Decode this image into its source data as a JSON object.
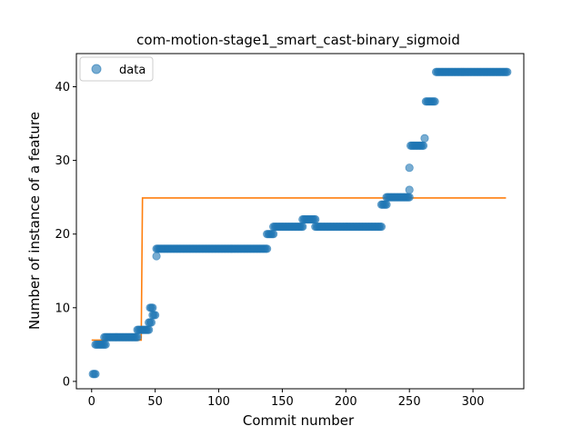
{
  "chart_data": {
    "type": "scatter",
    "title": "com-motion-stage1_smart_cast-binary_sigmoid",
    "xlabel": "Commit number",
    "ylabel": "Number of instance of a feature",
    "xlim": [
      -12,
      340
    ],
    "ylim": [
      -1,
      44.5
    ],
    "xticks": [
      0,
      50,
      100,
      150,
      200,
      250,
      300
    ],
    "yticks": [
      0,
      10,
      20,
      30,
      40
    ],
    "xtick_labels": [
      "0",
      "50",
      "100",
      "150",
      "200",
      "250",
      "300"
    ],
    "ytick_labels": [
      "0",
      "10",
      "20",
      "30",
      "40"
    ],
    "grid": false,
    "legend": {
      "position": "top-left",
      "entries": [
        "data"
      ]
    },
    "colors": {
      "points": "#1f77b4",
      "fit": "#ff7f0e"
    },
    "series": [
      {
        "name": "data",
        "kind": "scatter",
        "runs": [
          {
            "x0": 1,
            "x1": 3,
            "y": 1
          },
          {
            "x0": 3,
            "x1": 11,
            "y": 5
          },
          {
            "x0": 10,
            "x1": 36,
            "y": 6
          },
          {
            "x0": 36,
            "x1": 45,
            "y": 7
          },
          {
            "x0": 45,
            "x1": 47,
            "y": 8
          },
          {
            "x0": 46,
            "x1": 48,
            "y": 10
          },
          {
            "x0": 48,
            "x1": 50,
            "y": 9
          },
          {
            "x0": 51,
            "x1": 51,
            "y": 17
          },
          {
            "x0": 51,
            "x1": 138,
            "y": 18
          },
          {
            "x0": 138,
            "x1": 143,
            "y": 20
          },
          {
            "x0": 143,
            "x1": 166,
            "y": 21
          },
          {
            "x0": 166,
            "x1": 176,
            "y": 22
          },
          {
            "x0": 176,
            "x1": 228,
            "y": 21
          },
          {
            "x0": 228,
            "x1": 232,
            "y": 24
          },
          {
            "x0": 232,
            "x1": 250,
            "y": 25
          },
          {
            "x0": 250,
            "x1": 250,
            "y": 26
          },
          {
            "x0": 250,
            "x1": 250,
            "y": 29
          },
          {
            "x0": 251,
            "x1": 261,
            "y": 32
          },
          {
            "x0": 262,
            "x1": 262,
            "y": 33
          },
          {
            "x0": 263,
            "x1": 270,
            "y": 38
          },
          {
            "x0": 271,
            "x1": 327,
            "y": 42
          }
        ]
      },
      {
        "name": "",
        "kind": "line",
        "points": [
          [
            0,
            5.6
          ],
          [
            39,
            5.6
          ],
          [
            40,
            24.9
          ],
          [
            326,
            24.9
          ]
        ]
      }
    ]
  }
}
